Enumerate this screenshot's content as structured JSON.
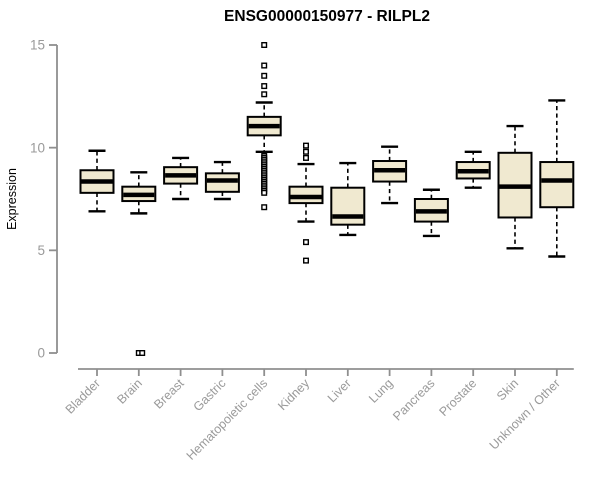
{
  "chart_data": {
    "type": "boxplot",
    "title": "ENSG00000150977 - RILPL2",
    "ylabel": "Expression",
    "xlabel": "",
    "ylim": [
      0,
      15
    ],
    "yticks": [
      0,
      5,
      10,
      15
    ],
    "grid": false,
    "legend": null,
    "colors": {
      "box_fill": "#F0E9D0",
      "box_border": "#000000",
      "median": "#000000",
      "whisker": "#000000",
      "axis_line": "#8f8f8f",
      "axis_text": "#9a9a9a",
      "title": "#000000"
    },
    "categories": [
      "Bladder",
      "Brain",
      "Breast",
      "Gastric",
      "Hematopoietic cells",
      "Kidney",
      "Liver",
      "Lung",
      "Pancreas",
      "Prostate",
      "Skin",
      "Unknown / Other"
    ],
    "boxes": [
      {
        "label": "Bladder",
        "low": 6.9,
        "q1": 7.8,
        "median": 8.35,
        "q3": 8.9,
        "high": 9.85,
        "outliers": []
      },
      {
        "label": "Brain",
        "low": 6.8,
        "q1": 7.4,
        "median": 7.7,
        "q3": 8.1,
        "high": 8.8,
        "outliers": [
          0,
          0
        ]
      },
      {
        "label": "Breast",
        "low": 7.5,
        "q1": 8.25,
        "median": 8.65,
        "q3": 9.05,
        "high": 9.5,
        "outliers": []
      },
      {
        "label": "Gastric",
        "low": 7.5,
        "q1": 7.85,
        "median": 8.4,
        "q3": 8.75,
        "high": 9.3,
        "outliers": []
      },
      {
        "label": "Hematopoietic cells",
        "low": 9.8,
        "q1": 10.6,
        "median": 11.05,
        "q3": 11.5,
        "high": 12.2,
        "outliers": [
          15,
          14,
          13.5,
          13,
          12.6,
          9.6,
          9.51,
          9.42,
          9.33,
          9.24,
          9.15,
          9.06,
          8.97,
          8.88,
          8.79,
          8.7,
          8.61,
          8.52,
          8.43,
          8.34,
          8.25,
          8.16,
          8.07,
          7.98,
          7.89,
          7.8,
          7.1
        ]
      },
      {
        "label": "Kidney",
        "low": 6.4,
        "q1": 7.3,
        "median": 7.6,
        "q3": 8.1,
        "high": 9.2,
        "outliers": [
          10.1,
          9.8,
          9.5,
          5.4,
          4.5
        ]
      },
      {
        "label": "Liver",
        "low": 5.75,
        "q1": 6.25,
        "median": 6.65,
        "q3": 8.05,
        "high": 9.25,
        "outliers": []
      },
      {
        "label": "Lung",
        "low": 7.3,
        "q1": 8.35,
        "median": 8.9,
        "q3": 9.35,
        "high": 10.05,
        "outliers": []
      },
      {
        "label": "Pancreas",
        "low": 5.7,
        "q1": 6.4,
        "median": 6.9,
        "q3": 7.5,
        "high": 7.95,
        "outliers": []
      },
      {
        "label": "Prostate",
        "low": 8.05,
        "q1": 8.5,
        "median": 8.85,
        "q3": 9.3,
        "high": 9.8,
        "outliers": []
      },
      {
        "label": "Skin",
        "low": 5.1,
        "q1": 6.6,
        "median": 8.1,
        "q3": 9.75,
        "high": 11.05,
        "outliers": []
      },
      {
        "label": "Unknown / Other",
        "low": 4.7,
        "q1": 7.1,
        "median": 8.4,
        "q3": 9.3,
        "high": 12.3,
        "outliers": []
      }
    ]
  }
}
